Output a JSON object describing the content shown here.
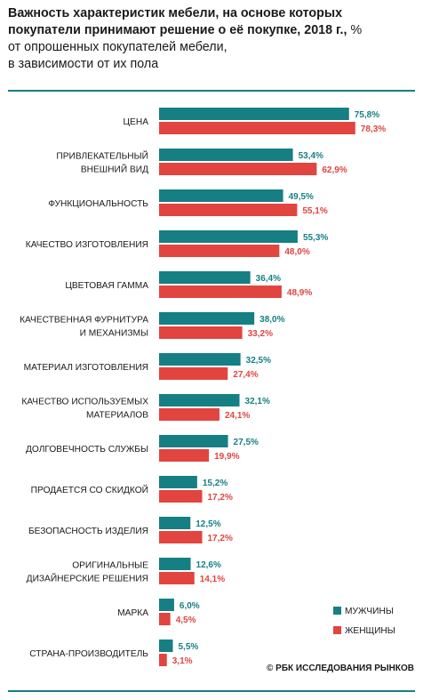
{
  "title": {
    "bold": "Важность характеристик мебели, на основе которых покупатели принимают решение о её покупке, 2018 г.,",
    "unit": "%",
    "subtitle_line1": "от опрошенных покупателей мебели,",
    "subtitle_line2": "в зависимости от их пола"
  },
  "source": "© РБК ИССЛЕДОВАНИЯ РЫНКОВ",
  "colors": {
    "men": "#157f84",
    "women": "#e2443f",
    "rule": "#157f84"
  },
  "chart_data": {
    "type": "bar",
    "orientation": "horizontal",
    "categories": [
      [
        "ЦЕНА"
      ],
      [
        "ПРИВЛЕКАТЕЛЬНЫЙ",
        "ВНЕШНИЙ ВИД"
      ],
      [
        "ФУНКЦИОНАЛЬНОСТЬ"
      ],
      [
        "КАЧЕСТВО ИЗГОТОВЛЕНИЯ"
      ],
      [
        "ЦВЕТОВАЯ ГАММА"
      ],
      [
        "КАЧЕСТВЕННАЯ ФУРНИТУРА",
        "И МЕХАНИЗМЫ"
      ],
      [
        "МАТЕРИАЛ ИЗГОТОВЛЕНИЯ"
      ],
      [
        "КАЧЕСТВО ИСПОЛЬЗУЕМЫХ",
        "МАТЕРИАЛОВ"
      ],
      [
        "ДОЛГОВЕЧНОСТЬ СЛУЖБЫ"
      ],
      [
        "ПРОДАЕТСЯ СО СКИДКОЙ"
      ],
      [
        "БЕЗОПАСНОСТЬ ИЗДЕЛИЯ"
      ],
      [
        "ОРИГИНАЛЬНЫЕ",
        "ДИЗАЙНЕРСКИЕ РЕШЕНИЯ"
      ],
      [
        "МАРКА"
      ],
      [
        "СТРАНА-ПРОИЗВОДИТЕЛЬ"
      ]
    ],
    "series": [
      {
        "name": "МУЖЧИНЫ",
        "color": "#157f84",
        "values": [
          75.8,
          53.4,
          49.5,
          55.3,
          36.4,
          38.0,
          32.5,
          32.1,
          27.5,
          15.2,
          12.5,
          12.6,
          6.0,
          5.5
        ],
        "labels": [
          "75,8%",
          "53,4%",
          "49,5%",
          "55,3%",
          "36,4%",
          "38,0%",
          "32,5%",
          "32,1%",
          "27,5%",
          "15,2%",
          "12,5%",
          "12,6%",
          "6,0%",
          "5,5%"
        ]
      },
      {
        "name": "ЖЕНЩИНЫ",
        "color": "#e2443f",
        "values": [
          78.3,
          62.9,
          55.1,
          48.0,
          48.9,
          33.2,
          27.4,
          24.1,
          19.9,
          17.2,
          17.2,
          14.1,
          4.5,
          3.1
        ],
        "labels": [
          "78,3%",
          "62,9%",
          "55,1%",
          "48,0%",
          "48,9%",
          "33,2%",
          "27,4%",
          "24,1%",
          "19,9%",
          "17,2%",
          "17,2%",
          "14,1%",
          "4,5%",
          "3,1%"
        ]
      }
    ],
    "xlim": [
      0,
      100
    ],
    "grid": false,
    "legend_position": "bottom-right"
  }
}
